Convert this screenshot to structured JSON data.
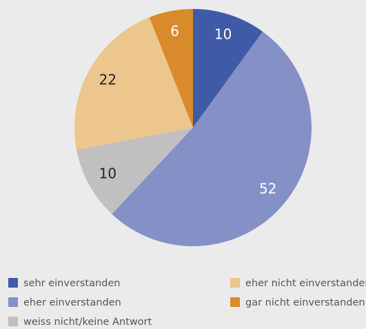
{
  "chart_data": {
    "type": "pie",
    "categories": [
      "sehr einverstanden",
      "eher einverstanden",
      "weiss nicht/keine Antwort",
      "eher nicht einverstanden",
      "gar nicht einverstanden"
    ],
    "values": [
      10,
      52,
      10,
      22,
      6
    ],
    "colors": [
      "#3f5aa6",
      "#8490c6",
      "#c0c0c0",
      "#ecc68c",
      "#d98b2b"
    ],
    "legend": "bottom"
  }
}
